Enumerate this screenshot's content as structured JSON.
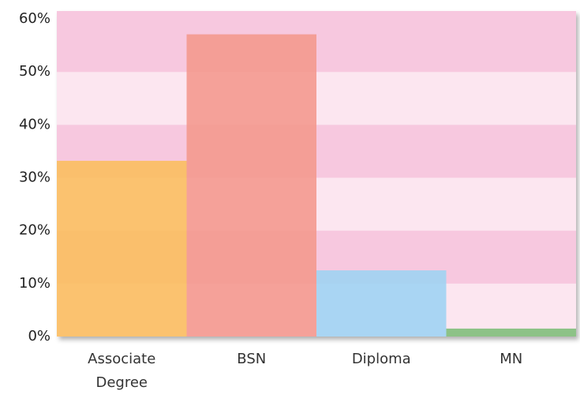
{
  "chart_data": {
    "type": "bar",
    "categories": [
      "Associate Degree",
      "BSN",
      "Diploma",
      "MN"
    ],
    "values": [
      33.2,
      57.1,
      12.5,
      1.5
    ],
    "colors": [
      "#fbbd5c",
      "#f4978c",
      "#9dd3f3",
      "#7dbd78"
    ],
    "ylim": [
      0,
      61.5
    ],
    "yticks": [
      {
        "value": 0,
        "label": "0%"
      },
      {
        "value": 10,
        "label": "10%"
      },
      {
        "value": 20,
        "label": "20%"
      },
      {
        "value": 30,
        "label": "30%"
      },
      {
        "value": 40,
        "label": "40%"
      },
      {
        "value": 50,
        "label": "50%"
      },
      {
        "value": 60,
        "label": "60%"
      }
    ],
    "grid": true
  }
}
